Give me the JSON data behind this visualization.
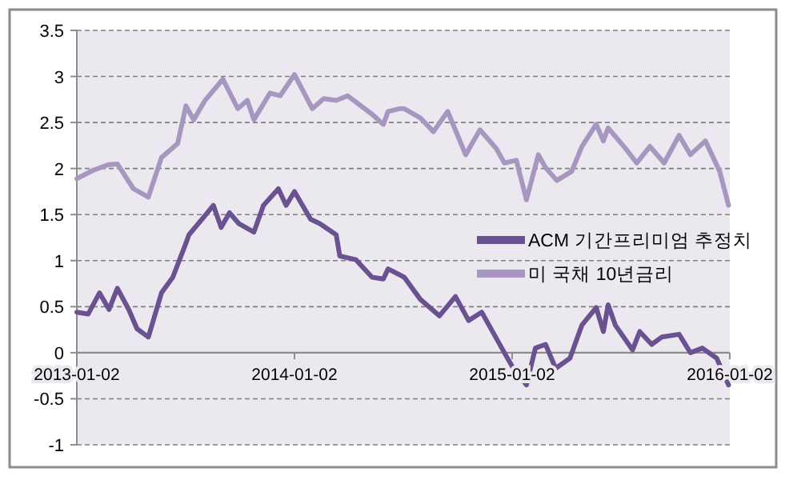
{
  "chart_data": {
    "type": "line",
    "xlim": [
      "2013-01-02",
      "2016-01-02"
    ],
    "xticks": [
      "2013-01-02",
      "2014-01-02",
      "2015-01-02",
      "2016-01-02"
    ],
    "ylim": [
      -1,
      3.5
    ],
    "yticks": [
      -1,
      -0.5,
      0,
      0.5,
      1,
      1.5,
      2,
      2.5,
      3,
      3.5
    ],
    "grid": "y",
    "legend": "right",
    "line_style": "solid",
    "marker": "none",
    "series": [
      {
        "name": "ACM 기간프리미엄 추정치",
        "color": "#6a5290",
        "x": [
          "2013-01-02",
          "2013-01-21",
          "2013-02-09",
          "2013-02-25",
          "2013-03-11",
          "2013-03-30",
          "2013-04-13",
          "2013-05-02",
          "2013-05-24",
          "2013-06-12",
          "2013-07-04",
          "2013-07-09",
          "2013-07-31",
          "2013-08-19",
          "2013-09-01",
          "2013-09-15",
          "2013-10-01",
          "2013-10-26",
          "2013-11-11",
          "2013-12-06",
          "2013-12-19",
          "2014-01-02",
          "2014-01-29",
          "2014-02-14",
          "2014-03-13",
          "2014-03-19",
          "2014-04-15",
          "2014-05-12",
          "2014-05-31",
          "2014-06-08",
          "2014-07-05",
          "2014-08-01",
          "2014-09-02",
          "2014-09-29",
          "2014-10-21",
          "2014-11-12",
          "2014-12-20",
          "2015-01-04",
          "2015-01-26",
          "2015-02-10",
          "2015-02-27",
          "2015-03-16",
          "2015-04-09",
          "2015-04-29",
          "2015-05-23",
          "2015-06-04",
          "2015-06-12",
          "2015-06-24",
          "2015-07-23",
          "2015-08-04",
          "2015-08-24",
          "2015-09-10",
          "2015-10-09",
          "2015-10-28",
          "2015-11-17",
          "2015-12-11",
          "2015-12-31"
        ],
        "values": [
          0.44,
          0.42,
          0.65,
          0.47,
          0.7,
          0.47,
          0.26,
          0.17,
          0.65,
          0.82,
          1.19,
          1.28,
          1.45,
          1.6,
          1.36,
          1.52,
          1.4,
          1.31,
          1.6,
          1.78,
          1.6,
          1.75,
          1.45,
          1.4,
          1.28,
          1.05,
          1.01,
          0.82,
          0.8,
          0.91,
          0.82,
          0.58,
          0.4,
          0.61,
          0.35,
          0.44,
          0.0,
          -0.17,
          -0.35,
          0.05,
          0.09,
          -0.17,
          -0.06,
          0.3,
          0.49,
          0.23,
          0.52,
          0.3,
          0.03,
          0.23,
          0.09,
          0.17,
          0.2,
          0.0,
          0.05,
          -0.06,
          -0.35
        ]
      },
      {
        "name": "미 국채 10년금리",
        "color": "#a797c0",
        "x": [
          "2013-01-02",
          "2013-01-29",
          "2013-02-23",
          "2013-03-11",
          "2013-04-07",
          "2013-05-02",
          "2013-05-24",
          "2013-06-20",
          "2013-07-04",
          "2013-07-17",
          "2013-08-05",
          "2013-09-04",
          "2013-09-29",
          "2013-10-15",
          "2013-10-26",
          "2013-11-22",
          "2013-12-09",
          "2014-01-02",
          "2014-02-01",
          "2014-02-20",
          "2014-03-13",
          "2014-04-01",
          "2014-05-12",
          "2014-05-31",
          "2014-06-08",
          "2014-06-27",
          "2014-07-05",
          "2014-08-01",
          "2014-08-23",
          "2014-09-16",
          "2014-10-16",
          "2014-11-09",
          "2014-12-06",
          "2014-12-20",
          "2015-01-09",
          "2015-01-26",
          "2015-02-15",
          "2015-02-27",
          "2015-03-18",
          "2015-04-12",
          "2015-04-29",
          "2015-05-23",
          "2015-06-04",
          "2015-06-12",
          "2015-07-11",
          "2015-07-30",
          "2015-08-21",
          "2015-09-14",
          "2015-10-09",
          "2015-10-28",
          "2015-11-22",
          "2015-12-16",
          "2015-12-31"
        ],
        "values": [
          1.89,
          1.98,
          2.04,
          2.05,
          1.78,
          1.69,
          2.12,
          2.27,
          2.68,
          2.53,
          2.74,
          2.97,
          2.65,
          2.74,
          2.53,
          2.82,
          2.79,
          3.02,
          2.65,
          2.76,
          2.74,
          2.79,
          2.59,
          2.48,
          2.62,
          2.65,
          2.65,
          2.55,
          2.4,
          2.62,
          2.15,
          2.42,
          2.22,
          2.06,
          2.09,
          1.66,
          2.15,
          2.01,
          1.87,
          1.97,
          2.24,
          2.48,
          2.3,
          2.44,
          2.22,
          2.06,
          2.24,
          2.06,
          2.36,
          2.15,
          2.3,
          1.97,
          1.6
        ]
      }
    ]
  }
}
